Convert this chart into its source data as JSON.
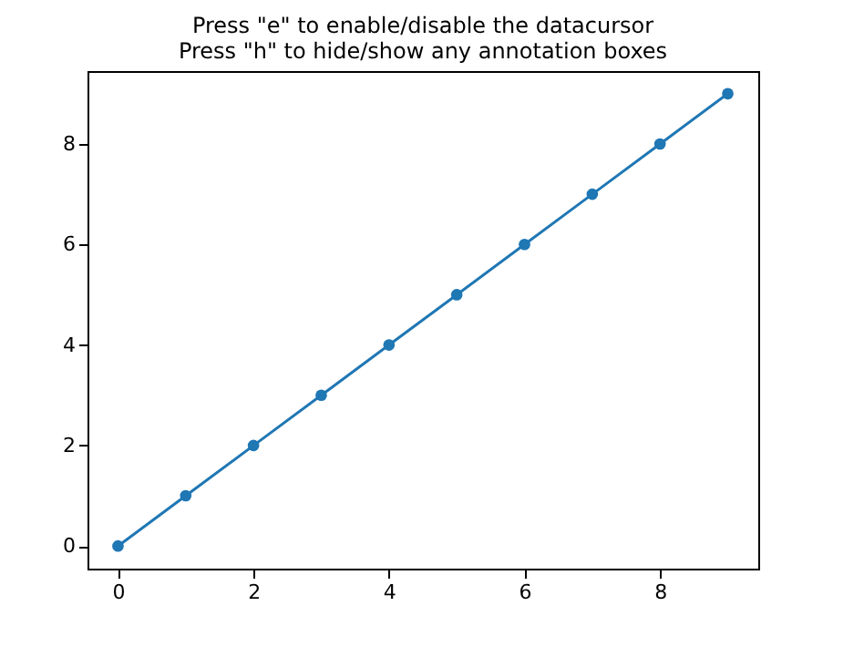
{
  "chart_data": {
    "type": "line",
    "title": "Press \"e\" to enable/disable the datacursor\nPress \"h\" to hide/show any annotation boxes",
    "x": [
      0,
      1,
      2,
      3,
      4,
      5,
      6,
      7,
      8,
      9
    ],
    "series": [
      {
        "color": "#1f77b4",
        "values": [
          0,
          1,
          2,
          3,
          4,
          5,
          6,
          7,
          8,
          9
        ]
      }
    ],
    "xlim": [
      -0.45,
      9.45
    ],
    "ylim": [
      -0.45,
      9.45
    ],
    "xticks": [
      0,
      2,
      4,
      6,
      8
    ],
    "yticks": [
      0,
      2,
      4,
      6,
      8
    ],
    "marker": "circle",
    "line_style": "solid",
    "grid": false
  }
}
